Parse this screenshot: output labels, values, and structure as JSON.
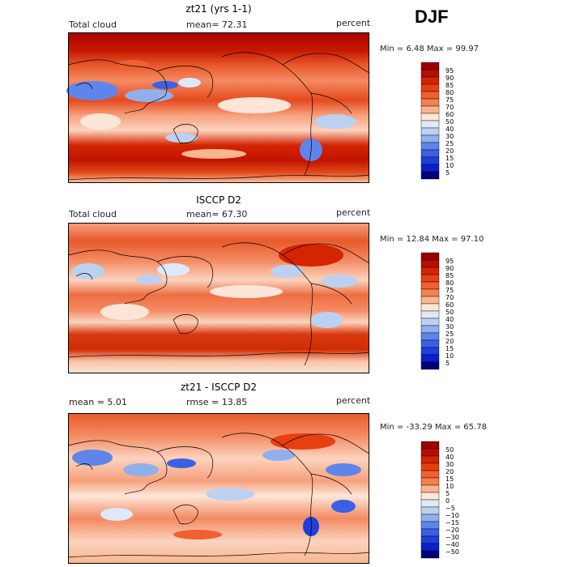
{
  "season": "DJF",
  "panels": [
    {
      "title": "zt21 (yrs 1-1)",
      "left_label": "Total cloud",
      "center_label": "mean=  72.31",
      "units": "percent",
      "min_max": "Min =   6.48 Max =  99.97",
      "palette": "abs"
    },
    {
      "title": "ISCCP D2",
      "left_label": "Total cloud",
      "center_label": "mean=  67.30",
      "units": "percent",
      "min_max": "Min =  12.84 Max =  97.10",
      "palette": "abs"
    },
    {
      "title": "zt21 - ISCCP D2",
      "left_label": "mean =   5.01",
      "center_label": "rmse =  13.85",
      "units": "percent",
      "min_max": "Min = -33.29 Max =  65.78",
      "palette": "diff"
    }
  ],
  "colorbars": {
    "abs": {
      "labels": [
        "95",
        "90",
        "85",
        "80",
        "75",
        "70",
        "60",
        "50",
        "40",
        "30",
        "25",
        "20",
        "15",
        "10",
        "5"
      ],
      "colors": [
        "#9b0000",
        "#b80e00",
        "#d42400",
        "#e64010",
        "#f06030",
        "#f58050",
        "#fab58f",
        "#fde6d8",
        "#dde8f8",
        "#bcd0f0",
        "#8fb0ec",
        "#5f85ea",
        "#3a60e6",
        "#1d3fdc",
        "#0a1fcd",
        "#00007a"
      ]
    },
    "diff": {
      "labels": [
        "50",
        "40",
        "30",
        "20",
        "15",
        "10",
        "5",
        "0",
        "−5",
        "−10",
        "−15",
        "−20",
        "−30",
        "−40",
        "−50"
      ],
      "colors": [
        "#9b0000",
        "#b80e00",
        "#d42400",
        "#e64010",
        "#f06030",
        "#f58050",
        "#fab58f",
        "#fde6d8",
        "#dde8f8",
        "#bcd0f0",
        "#8fb0ec",
        "#5f85ea",
        "#3a60e6",
        "#1d3fdc",
        "#0a1fcd",
        "#00007a"
      ]
    }
  },
  "chart_data": [
    {
      "type": "heatmap",
      "title": "zt21 (yrs 1-1)",
      "variable": "Total cloud",
      "units": "percent",
      "mean": 72.31,
      "min": 6.48,
      "max": 99.97,
      "levels": [
        5,
        10,
        15,
        20,
        25,
        30,
        40,
        50,
        60,
        70,
        75,
        80,
        85,
        90,
        95
      ]
    },
    {
      "type": "heatmap",
      "title": "ISCCP D2",
      "variable": "Total cloud",
      "units": "percent",
      "mean": 67.3,
      "min": 12.84,
      "max": 97.1,
      "levels": [
        5,
        10,
        15,
        20,
        25,
        30,
        40,
        50,
        60,
        70,
        75,
        80,
        85,
        90,
        95
      ]
    },
    {
      "type": "heatmap",
      "title": "zt21 - ISCCP D2",
      "units": "percent",
      "mean": 5.01,
      "rmse": 13.85,
      "min": -33.29,
      "max": 65.78,
      "levels": [
        -50,
        -40,
        -30,
        -20,
        -15,
        -10,
        -5,
        0,
        5,
        10,
        15,
        20,
        30,
        40,
        50
      ]
    }
  ]
}
